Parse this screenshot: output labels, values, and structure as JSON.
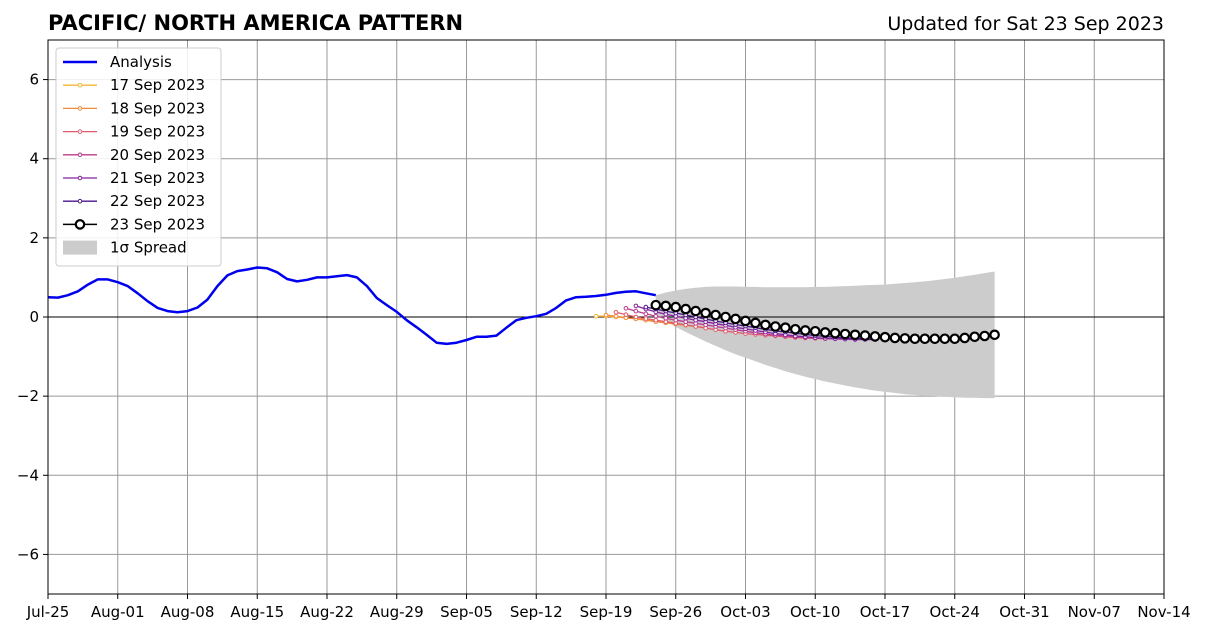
{
  "chart_data": {
    "type": "line",
    "title": "PACIFIC/ NORTH AMERICA PATTERN",
    "subtitle": "Updated for Sat 23 Sep 2023",
    "xlabel": "",
    "ylabel": "",
    "xlim": [
      "2023-07-25",
      "2023-11-14"
    ],
    "ylim": [
      -7,
      7
    ],
    "x_ticks": [
      "Jul-25",
      "Aug-01",
      "Aug-08",
      "Aug-15",
      "Aug-22",
      "Aug-29",
      "Sep-05",
      "Sep-12",
      "Sep-19",
      "Sep-26",
      "Oct-03",
      "Oct-10",
      "Oct-17",
      "Oct-24",
      "Oct-31",
      "Nov-07",
      "Nov-14"
    ],
    "y_ticks": [
      -6,
      -4,
      -2,
      0,
      2,
      4,
      6
    ],
    "y_tick_labels": [
      "−6",
      "−4",
      "−2",
      "0",
      "2",
      "4",
      "6"
    ],
    "grid": true,
    "zero_line": 0,
    "legend_position": "top-left",
    "colors": {
      "analysis": "#0000ee",
      "spread": "#cccccc",
      "grid": "#999999"
    },
    "analysis": {
      "name": "Analysis",
      "start": "2023-07-25",
      "values": [
        0.5,
        0.49,
        0.55,
        0.65,
        0.82,
        0.95,
        0.95,
        0.88,
        0.78,
        0.6,
        0.4,
        0.23,
        0.15,
        0.12,
        0.15,
        0.24,
        0.44,
        0.78,
        1.05,
        1.16,
        1.2,
        1.25,
        1.23,
        1.13,
        0.96,
        0.9,
        0.94,
        1.0,
        1.0,
        1.03,
        1.06,
        1.0,
        0.78,
        0.48,
        0.3,
        0.13,
        -0.08,
        -0.26,
        -0.45,
        -0.65,
        -0.68,
        -0.65,
        -0.58,
        -0.5,
        -0.5,
        -0.47,
        -0.27,
        -0.08,
        -0.02,
        0.02,
        0.08,
        0.23,
        0.42,
        0.5,
        0.51,
        0.53,
        0.56,
        0.61,
        0.64,
        0.65,
        0.6,
        0.55
      ]
    },
    "forecasts": [
      {
        "name": "17 Sep 2023",
        "color": "#f5b436",
        "start": "2023-09-18",
        "values": [
          0.02,
          0.02,
          0.0,
          -0.02,
          -0.04,
          -0.06,
          -0.09,
          -0.12,
          -0.15
        ]
      },
      {
        "name": "18 Sep 2023",
        "color": "#ef8a3a",
        "start": "2023-09-19",
        "values": [
          0.05,
          0.02,
          -0.02,
          -0.05,
          -0.08,
          -0.12,
          -0.15,
          -0.18,
          -0.21,
          -0.24,
          -0.27
        ]
      },
      {
        "name": "19 Sep 2023",
        "color": "#e25b6a",
        "start": "2023-09-20",
        "values": [
          0.12,
          0.06,
          0.0,
          -0.04,
          -0.08,
          -0.12,
          -0.16,
          -0.2,
          -0.24,
          -0.28,
          -0.32,
          -0.36,
          -0.39,
          -0.42,
          -0.44,
          -0.46,
          -0.48,
          -0.5,
          -0.52,
          -0.53,
          -0.54,
          -0.55,
          -0.55,
          -0.55
        ]
      },
      {
        "name": "20 Sep 2023",
        "color": "#bb3b8f",
        "start": "2023-09-21",
        "values": [
          0.22,
          0.15,
          0.08,
          0.02,
          -0.03,
          -0.08,
          -0.12,
          -0.16,
          -0.2,
          -0.24,
          -0.28,
          -0.32,
          -0.36,
          -0.4,
          -0.43,
          -0.46,
          -0.48,
          -0.5,
          -0.52,
          -0.53,
          -0.54,
          -0.55,
          -0.55,
          -0.56,
          -0.56
        ]
      },
      {
        "name": "21 Sep 2023",
        "color": "#86229f",
        "start": "2023-09-22",
        "values": [
          0.28,
          0.2,
          0.13,
          0.07,
          0.02,
          -0.03,
          -0.08,
          -0.12,
          -0.17,
          -0.21,
          -0.26,
          -0.3,
          -0.34,
          -0.38,
          -0.42,
          -0.45,
          -0.48,
          -0.5,
          -0.52,
          -0.54,
          -0.55,
          -0.56,
          -0.57,
          -0.57,
          -0.57
        ]
      },
      {
        "name": "22 Sep 2023",
        "color": "#4a1489",
        "start": "2023-09-23",
        "values": [
          0.25,
          0.2,
          0.15,
          0.1,
          0.05,
          0.0,
          -0.05,
          -0.1,
          -0.15,
          -0.19,
          -0.23,
          -0.27,
          -0.31,
          -0.35,
          -0.38,
          -0.41,
          -0.44,
          -0.47,
          -0.49,
          -0.51,
          -0.53,
          -0.54,
          -0.55,
          -0.56
        ]
      }
    ],
    "latest": {
      "name": "23 Sep 2023",
      "start": "2023-09-24",
      "values": [
        0.3,
        0.28,
        0.25,
        0.2,
        0.15,
        0.1,
        0.05,
        0.0,
        -0.05,
        -0.1,
        -0.15,
        -0.2,
        -0.24,
        -0.27,
        -0.31,
        -0.34,
        -0.36,
        -0.39,
        -0.41,
        -0.43,
        -0.45,
        -0.47,
        -0.49,
        -0.51,
        -0.53,
        -0.54,
        -0.55,
        -0.55,
        -0.55,
        -0.55,
        -0.55,
        -0.53,
        -0.5,
        -0.48,
        -0.45
      ]
    },
    "spread": {
      "name": "1σ Spread",
      "start": "2023-09-24",
      "dates_step": 1,
      "upper": [
        0.55,
        0.62,
        0.67,
        0.71,
        0.74,
        0.76,
        0.77,
        0.77,
        0.77,
        0.76,
        0.76,
        0.75,
        0.75,
        0.75,
        0.75,
        0.75,
        0.76,
        0.76,
        0.77,
        0.78,
        0.79,
        0.8,
        0.81,
        0.82,
        0.84,
        0.86,
        0.88,
        0.9,
        0.93,
        0.96,
        0.99,
        1.03,
        1.07,
        1.11,
        1.15
      ],
      "lower": [
        0.05,
        -0.1,
        -0.25,
        -0.38,
        -0.5,
        -0.62,
        -0.73,
        -0.84,
        -0.94,
        -1.03,
        -1.12,
        -1.21,
        -1.29,
        -1.37,
        -1.44,
        -1.51,
        -1.57,
        -1.63,
        -1.68,
        -1.73,
        -1.78,
        -1.82,
        -1.86,
        -1.89,
        -1.92,
        -1.95,
        -1.97,
        -1.99,
        -2.0,
        -2.02,
        -2.03,
        -2.04,
        -2.04,
        -2.05,
        -2.05
      ]
    }
  }
}
